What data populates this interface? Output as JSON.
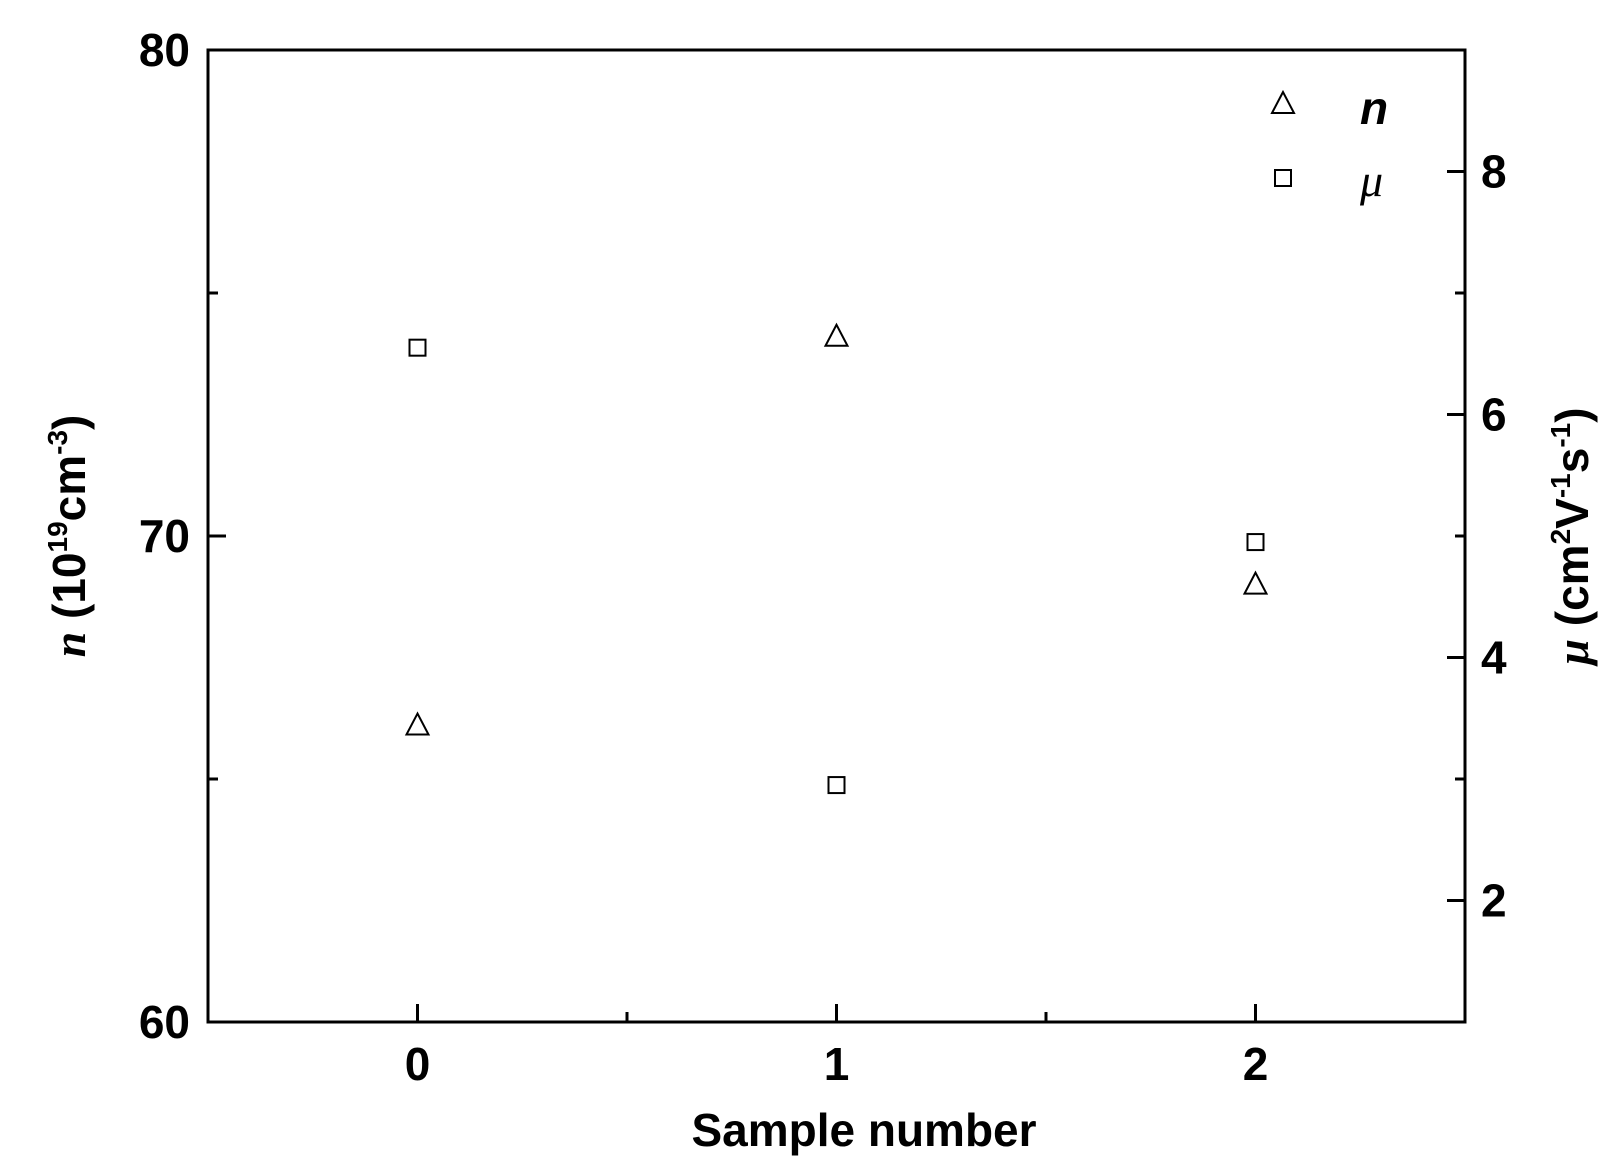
{
  "chart_data": {
    "type": "scatter",
    "xlabel": "Sample number",
    "ylabel_left": {
      "symbol": "n",
      "unit_prefix": " (10",
      "unit_exp": "19",
      "unit_mid": "cm",
      "unit_exp2": "-3",
      "unit_suffix": ")"
    },
    "ylabel_right": {
      "symbol": "μ",
      "unit_prefix": " (cm",
      "unit_exp1": "2",
      "unit_mid1": "V",
      "unit_exp2": "-1",
      "unit_mid2": "s",
      "unit_exp3": "-1",
      "unit_suffix": ")"
    },
    "xlim": [
      -0.5,
      2.5
    ],
    "ylim_left": [
      60,
      80
    ],
    "ylim_right": [
      1,
      9
    ],
    "x_ticks": [
      "0",
      "1",
      "2"
    ],
    "y_left_ticks": [
      "60",
      "70",
      "80"
    ],
    "y_right_ticks": [
      "2",
      "4",
      "6",
      "8"
    ],
    "grid": false,
    "legend_position": "top-right",
    "series": [
      {
        "name": "n",
        "axis": "left",
        "marker": "triangle",
        "x": [
          0,
          1,
          2
        ],
        "y": [
          66.1,
          74.1,
          69.0
        ]
      },
      {
        "name": "μ",
        "axis": "right",
        "marker": "square",
        "x": [
          0,
          1,
          2
        ],
        "y": [
          6.55,
          2.95,
          4.95
        ]
      }
    ]
  }
}
